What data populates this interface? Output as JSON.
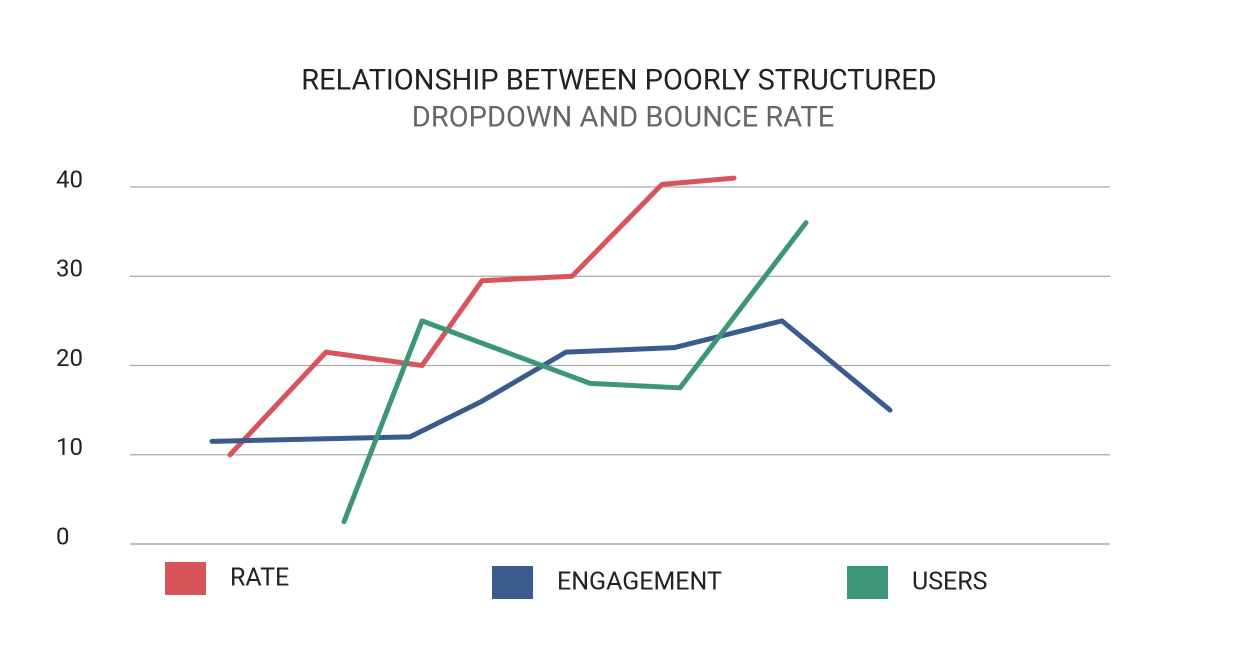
{
  "chart_data": {
    "type": "line",
    "title": "RELATIONSHIP BETWEEN POORLY STRUCTURED",
    "subtitle": "DROPDOWN AND BOUNCE RATE",
    "xlim": [
      1,
      15
    ],
    "ylim": [
      0,
      40
    ],
    "yticks": [
      0,
      10,
      20,
      30,
      40
    ],
    "grid": true,
    "series": [
      {
        "name": "RATE",
        "color": "#d9545a",
        "x": [
          2,
          3.6,
          5.2,
          6.2,
          7.7,
          9.2,
          10.4
        ],
        "values": [
          10,
          21.5,
          20,
          29.5,
          30,
          40.3,
          41
        ]
      },
      {
        "name": "ENGAGEMENT",
        "color": "#3b5b8e",
        "x": [
          1.7,
          5,
          6.2,
          7.6,
          9.4,
          11.2,
          13
        ],
        "values": [
          11.5,
          12,
          16,
          21.5,
          22,
          25,
          15
        ]
      },
      {
        "name": "USERS",
        "color": "#3e967a",
        "x": [
          3.9,
          5.2,
          8,
          9.5,
          11.6
        ],
        "values": [
          2.5,
          25,
          18,
          17.5,
          36
        ]
      }
    ]
  }
}
